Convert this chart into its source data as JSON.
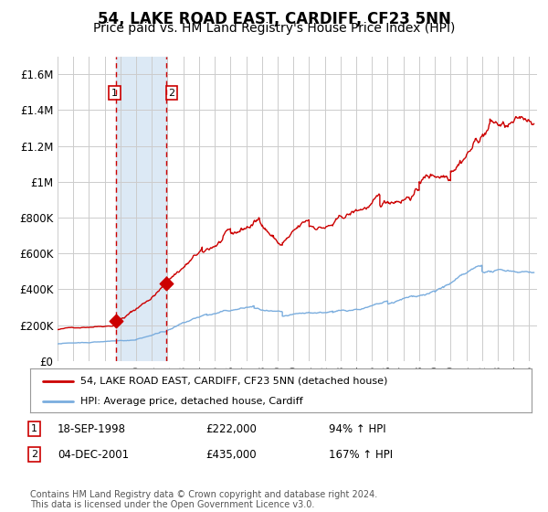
{
  "title": "54, LAKE ROAD EAST, CARDIFF, CF23 5NN",
  "subtitle": "Price paid vs. HM Land Registry's House Price Index (HPI)",
  "title_fontsize": 12,
  "subtitle_fontsize": 10,
  "background_color": "#ffffff",
  "plot_bg_color": "#ffffff",
  "grid_color": "#cccccc",
  "purchase1_date": 1998.72,
  "purchase1_price": 222000,
  "purchase2_date": 2001.92,
  "purchase2_price": 435000,
  "xmin": 1995.0,
  "xmax": 2025.5,
  "ymin": 0,
  "ymax": 1700000,
  "yticks": [
    0,
    200000,
    400000,
    600000,
    800000,
    1000000,
    1200000,
    1400000,
    1600000
  ],
  "ytick_labels": [
    "£0",
    "£200K",
    "£400K",
    "£600K",
    "£800K",
    "£1M",
    "£1.2M",
    "£1.4M",
    "£1.6M"
  ],
  "red_color": "#cc0000",
  "blue_color": "#7aadde",
  "shade_color": "#dce9f5",
  "dashed_color": "#cc0000",
  "legend1_label": "54, LAKE ROAD EAST, CARDIFF, CF23 5NN (detached house)",
  "legend2_label": "HPI: Average price, detached house, Cardiff",
  "table_row1": [
    "1",
    "18-SEP-1998",
    "£222,000",
    "94% ↑ HPI"
  ],
  "table_row2": [
    "2",
    "04-DEC-2001",
    "£435,000",
    "167% ↑ HPI"
  ],
  "footer": "Contains HM Land Registry data © Crown copyright and database right 2024.\nThis data is licensed under the Open Government Licence v3.0."
}
